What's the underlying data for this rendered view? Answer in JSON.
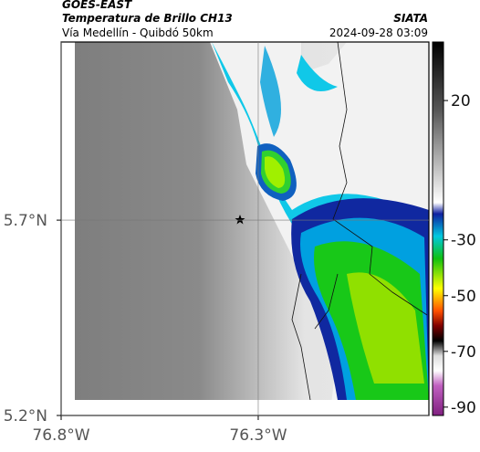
{
  "header": {
    "source": "GOES-EAST",
    "title": "Temperatura de Brillo CH13",
    "org": "SIATA",
    "subtitle": "Vía Medellín - Quibdó 50km",
    "datetime": "2024-09-28 03:09"
  },
  "map": {
    "xlim": [
      -76.8,
      -75.867
    ],
    "ylim": [
      5.2,
      6.156
    ],
    "xticks": [
      {
        "value": -76.8,
        "label": "76.8°W"
      },
      {
        "value": -76.3,
        "label": "76.3°W"
      }
    ],
    "yticks": [
      {
        "value": 5.7,
        "label": "5.7°N"
      },
      {
        "value": 5.2,
        "label": "5.2°N"
      }
    ],
    "grid": true
  },
  "colorbar": {
    "lim": [
      -93,
      41
    ],
    "ticks": [
      20,
      -30,
      -50,
      -70,
      -90
    ]
  }
}
